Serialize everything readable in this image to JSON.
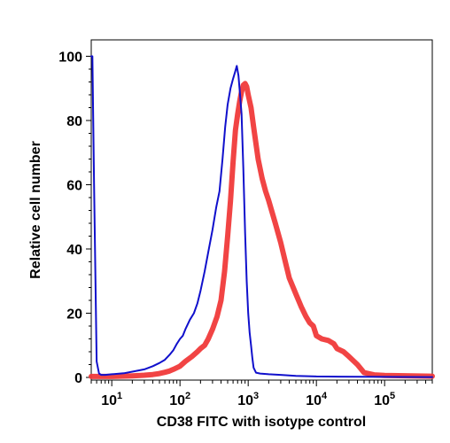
{
  "chart_data": {
    "type": "line",
    "title": "",
    "xlabel": "CD38 FITC with isotype control",
    "ylabel": "Relative cell number",
    "x_scale": "log",
    "xlim": [
      5,
      500000
    ],
    "ylim": [
      0,
      100
    ],
    "grid": false,
    "legend": "none",
    "y_ticks": [
      0,
      20,
      40,
      60,
      80,
      100
    ],
    "x_tick_labels": [
      {
        "value": 10,
        "base": "10",
        "exp": "1"
      },
      {
        "value": 100,
        "base": "10",
        "exp": "2"
      },
      {
        "value": 1000,
        "base": "10",
        "exp": "3"
      },
      {
        "value": 10000,
        "base": "10",
        "exp": "4"
      },
      {
        "value": 100000,
        "base": "10",
        "exp": "5"
      }
    ],
    "series": [
      {
        "color": "#1010cc",
        "x": [
          5,
          5.2,
          5.5,
          6,
          6.5,
          7,
          8,
          10,
          15,
          20,
          30,
          40,
          50,
          60,
          70,
          80,
          90,
          100,
          110,
          120,
          140,
          160,
          180,
          200,
          230,
          260,
          300,
          340,
          380,
          420,
          460,
          500,
          550,
          600,
          640,
          680,
          720,
          760,
          800,
          850,
          900,
          950,
          1000,
          1050,
          1100,
          1150,
          1200,
          1300,
          1500,
          2000,
          3000,
          5000,
          10000,
          50000,
          500000
        ],
        "y": [
          100,
          100,
          60,
          5,
          1.2,
          0.8,
          0.8,
          1,
          1.3,
          1.8,
          2.5,
          3.5,
          4.5,
          5.5,
          7,
          8.5,
          10.5,
          12,
          13,
          15,
          18,
          20,
          23,
          27,
          33,
          39,
          46,
          53,
          58,
          68,
          78,
          85,
          90,
          93,
          95,
          97,
          94,
          88,
          82,
          65,
          45,
          30,
          20,
          14,
          10,
          6,
          3,
          1.5,
          1.2,
          1,
          0.8,
          0.5,
          0.3,
          0.2,
          0.1
        ]
      },
      {
        "color": "#f03a3a",
        "x": [
          5,
          10,
          20,
          30,
          40,
          50,
          60,
          70,
          80,
          100,
          120,
          150,
          180,
          200,
          230,
          260,
          300,
          350,
          400,
          450,
          500,
          550,
          600,
          650,
          700,
          750,
          800,
          850,
          900,
          950,
          1000,
          1100,
          1200,
          1400,
          1600,
          1800,
          2000,
          2500,
          3000,
          3500,
          4000,
          5000,
          6000,
          7000,
          8000,
          9000,
          10000,
          12000,
          15000,
          18000,
          20000,
          25000,
          30000,
          40000,
          50000,
          70000,
          100000,
          500000
        ],
        "y": [
          0.3,
          0.3,
          0.5,
          0.7,
          0.9,
          1.2,
          1.6,
          2,
          2.5,
          3.5,
          5,
          6.5,
          8,
          9,
          10,
          12,
          15,
          19,
          24,
          33,
          44,
          55,
          67,
          77,
          82,
          86,
          89,
          91,
          91.5,
          90.5,
          88,
          84,
          78,
          68,
          62,
          58,
          55,
          48,
          42,
          36,
          31,
          26,
          22,
          19,
          17,
          16,
          13,
          12,
          11.5,
          10.5,
          9,
          8,
          6.5,
          4,
          1.5,
          0.8,
          0.6,
          0.4
        ]
      }
    ]
  }
}
